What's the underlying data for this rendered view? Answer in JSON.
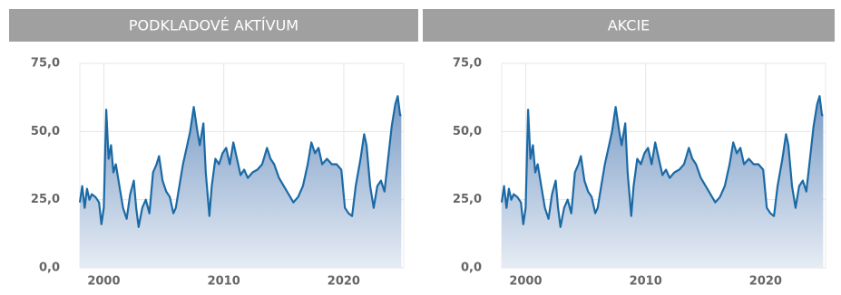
{
  "chart_data": [
    {
      "type": "area",
      "title": "PODKLADOVÉ AKTÍVUM",
      "color": "#1b6aa5",
      "x": [
        1998.0,
        1998.2,
        1998.4,
        1998.6,
        1998.8,
        1999.0,
        1999.3,
        1999.6,
        1999.8,
        2000.0,
        2000.2,
        2000.4,
        2000.6,
        2000.8,
        2001.0,
        2001.3,
        2001.6,
        2001.9,
        2002.2,
        2002.5,
        2002.7,
        2002.9,
        2003.2,
        2003.5,
        2003.8,
        2004.1,
        2004.4,
        2004.6,
        2004.9,
        2005.2,
        2005.5,
        2005.8,
        2006.0,
        2006.3,
        2006.6,
        2006.9,
        2007.2,
        2007.5,
        2007.8,
        2008.0,
        2008.3,
        2008.5,
        2008.8,
        2009.0,
        2009.3,
        2009.6,
        2009.9,
        2010.2,
        2010.5,
        2010.8,
        2011.1,
        2011.4,
        2011.7,
        2012.0,
        2012.4,
        2012.8,
        2013.2,
        2013.6,
        2013.9,
        2014.2,
        2014.6,
        2015.0,
        2015.4,
        2015.8,
        2016.2,
        2016.6,
        2017.0,
        2017.3,
        2017.6,
        2017.9,
        2018.2,
        2018.6,
        2019.0,
        2019.4,
        2019.8,
        2020.1,
        2020.4,
        2020.7,
        2021.0,
        2021.4,
        2021.7,
        2021.9,
        2022.2,
        2022.5,
        2022.8,
        2023.1,
        2023.4,
        2023.7,
        2024.0,
        2024.3,
        2024.5,
        2024.7,
        2024.8
      ],
      "values": [
        24,
        30,
        22,
        29,
        25,
        27,
        26,
        24,
        16,
        22,
        58,
        40,
        45,
        35,
        38,
        30,
        22,
        18,
        27,
        32,
        22,
        15,
        22,
        25,
        20,
        35,
        38,
        41,
        32,
        28,
        26,
        20,
        22,
        30,
        38,
        44,
        50,
        59,
        50,
        45,
        53,
        35,
        19,
        30,
        40,
        38,
        42,
        44,
        38,
        46,
        40,
        34,
        36,
        33,
        35,
        36,
        38,
        44,
        40,
        38,
        33,
        30,
        27,
        24,
        26,
        30,
        38,
        46,
        42,
        44,
        38,
        40,
        38,
        38,
        36,
        22,
        20,
        19,
        30,
        40,
        49,
        45,
        30,
        22,
        30,
        32,
        28,
        40,
        52,
        60,
        63,
        56,
        56
      ],
      "xlim": [
        1998,
        2025
      ],
      "ylim": [
        0,
        75
      ],
      "xticks": [
        2000,
        2010,
        2020
      ],
      "yticks": [
        {
          "value": 0,
          "label": "0,0"
        },
        {
          "value": 25,
          "label": "25,0"
        },
        {
          "value": 50,
          "label": "50,0"
        },
        {
          "value": 75,
          "label": "75,0"
        }
      ],
      "grid": true
    },
    {
      "type": "area",
      "title": "AKCIE",
      "color": "#1b6aa5",
      "x": [
        1998.0,
        1998.2,
        1998.4,
        1998.6,
        1998.8,
        1999.0,
        1999.3,
        1999.6,
        1999.8,
        2000.0,
        2000.2,
        2000.4,
        2000.6,
        2000.8,
        2001.0,
        2001.3,
        2001.6,
        2001.9,
        2002.2,
        2002.5,
        2002.7,
        2002.9,
        2003.2,
        2003.5,
        2003.8,
        2004.1,
        2004.4,
        2004.6,
        2004.9,
        2005.2,
        2005.5,
        2005.8,
        2006.0,
        2006.3,
        2006.6,
        2006.9,
        2007.2,
        2007.5,
        2007.8,
        2008.0,
        2008.3,
        2008.5,
        2008.8,
        2009.0,
        2009.3,
        2009.6,
        2009.9,
        2010.2,
        2010.5,
        2010.8,
        2011.1,
        2011.4,
        2011.7,
        2012.0,
        2012.4,
        2012.8,
        2013.2,
        2013.6,
        2013.9,
        2014.2,
        2014.6,
        2015.0,
        2015.4,
        2015.8,
        2016.2,
        2016.6,
        2017.0,
        2017.3,
        2017.6,
        2017.9,
        2018.2,
        2018.6,
        2019.0,
        2019.4,
        2019.8,
        2020.1,
        2020.4,
        2020.7,
        2021.0,
        2021.4,
        2021.7,
        2021.9,
        2022.2,
        2022.5,
        2022.8,
        2023.1,
        2023.4,
        2023.7,
        2024.0,
        2024.3,
        2024.5,
        2024.7,
        2024.8
      ],
      "values": [
        24,
        30,
        22,
        29,
        25,
        27,
        26,
        24,
        16,
        22,
        58,
        40,
        45,
        35,
        38,
        30,
        22,
        18,
        27,
        32,
        22,
        15,
        22,
        25,
        20,
        35,
        38,
        41,
        32,
        28,
        26,
        20,
        22,
        30,
        38,
        44,
        50,
        59,
        50,
        45,
        53,
        35,
        19,
        30,
        40,
        38,
        42,
        44,
        38,
        46,
        40,
        34,
        36,
        33,
        35,
        36,
        38,
        44,
        40,
        38,
        33,
        30,
        27,
        24,
        26,
        30,
        38,
        46,
        42,
        44,
        38,
        40,
        38,
        38,
        36,
        22,
        20,
        19,
        30,
        40,
        49,
        45,
        30,
        22,
        30,
        32,
        28,
        40,
        52,
        60,
        63,
        56,
        56
      ],
      "xlim": [
        1998,
        2025
      ],
      "ylim": [
        0,
        75
      ],
      "xticks": [
        2000,
        2010,
        2020
      ],
      "yticks": [
        {
          "value": 0,
          "label": "0,0"
        },
        {
          "value": 25,
          "label": "25,0"
        },
        {
          "value": 50,
          "label": "50,0"
        },
        {
          "value": 75,
          "label": "75,0"
        }
      ],
      "grid": true
    }
  ]
}
